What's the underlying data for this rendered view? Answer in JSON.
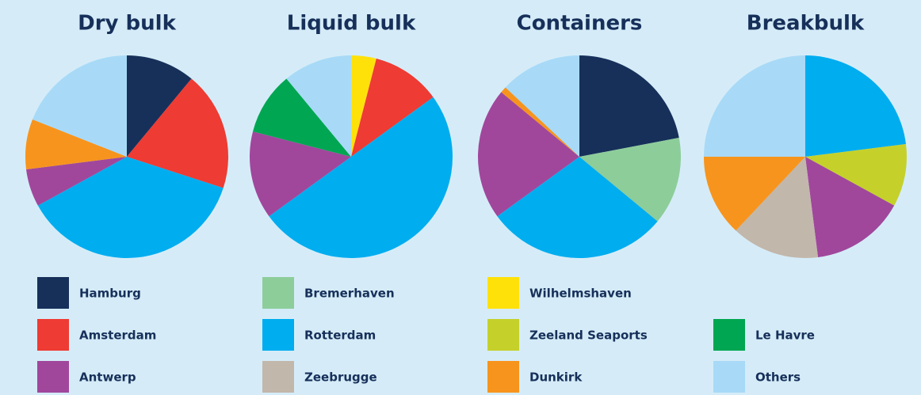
{
  "chart_data": [
    {
      "type": "pie",
      "title": "Dry bulk",
      "categories": [
        "Hamburg",
        "Amsterdam",
        "Rotterdam",
        "Antwerp",
        "Dunkirk",
        "Others"
      ],
      "values": [
        11,
        19,
        37,
        6,
        8,
        19
      ]
    },
    {
      "type": "pie",
      "title": "Liquid bulk",
      "categories": [
        "Wilhelmshaven",
        "Amsterdam",
        "Rotterdam",
        "Antwerp",
        "Le Havre",
        "Others"
      ],
      "values": [
        4,
        11,
        50,
        14,
        10,
        11
      ]
    },
    {
      "type": "pie",
      "title": "Containers",
      "categories": [
        "Hamburg",
        "Bremerhaven",
        "Rotterdam",
        "Antwerp",
        "Dunkirk",
        "Others"
      ],
      "values": [
        22,
        14,
        29,
        21,
        1,
        13
      ]
    },
    {
      "type": "pie",
      "title": "Breakbulk",
      "categories": [
        "Rotterdam",
        "Zeeland Seaports",
        "Antwerp",
        "Zeebrugge",
        "Dunkirk",
        "Others"
      ],
      "values": [
        23,
        10,
        15,
        14,
        13,
        25
      ]
    }
  ],
  "legend": [
    {
      "name": "Hamburg",
      "color": "#17305a"
    },
    {
      "name": "Amsterdam",
      "color": "#ee3b33"
    },
    {
      "name": "Antwerp",
      "color": "#a0479c"
    },
    {
      "name": "Bremerhaven",
      "color": "#8dcd9a"
    },
    {
      "name": "Rotterdam",
      "color": "#00adef"
    },
    {
      "name": "Zeebrugge",
      "color": "#c2b7ab"
    },
    {
      "name": "Wilhelmshaven",
      "color": "#ffe10a"
    },
    {
      "name": "Zeeland Seaports",
      "color": "#c5d12a"
    },
    {
      "name": "Dunkirk",
      "color": "#f7941d"
    },
    {
      "name": "Le Havre",
      "color": "#00a651"
    },
    {
      "name": "Others",
      "color": "#a8daf7"
    }
  ]
}
